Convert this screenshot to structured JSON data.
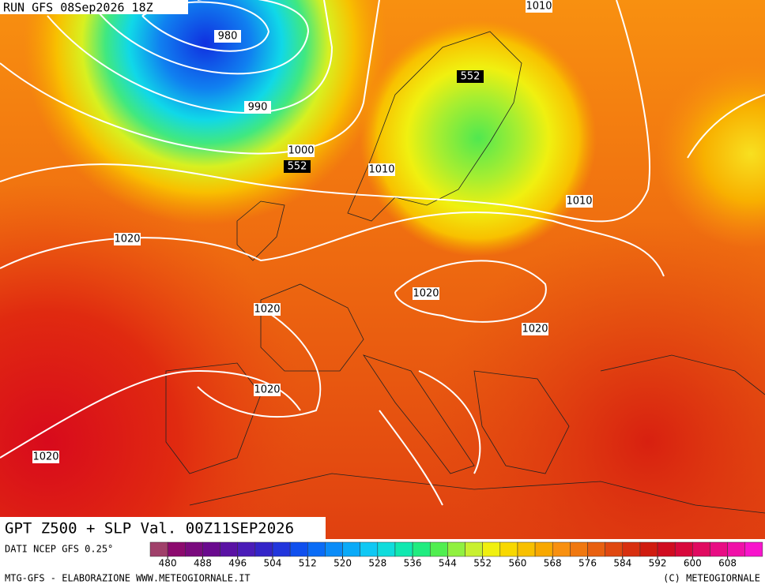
{
  "header": "RUN GFS 08Sep2026 18Z",
  "title": "GPT Z500 + SLP Val. 00Z11SEP2026",
  "contour_labels": [
    "980",
    "990",
    "1000",
    "552",
    "552",
    "1010",
    "1010",
    "1010",
    "1020",
    "1020",
    "1020",
    "1020",
    "1020",
    "1020"
  ],
  "colorbar": {
    "caption": "DATI NCEP GFS 0.25°",
    "ticks": [
      480,
      488,
      496,
      504,
      512,
      520,
      528,
      536,
      544,
      552,
      560,
      568,
      576,
      584,
      592,
      600,
      608
    ],
    "colors": [
      "#a0406a",
      "#8c0a6e",
      "#7a0a7e",
      "#6a0a8e",
      "#5a12a4",
      "#4a1cb8",
      "#3424c8",
      "#2236dc",
      "#1050ee",
      "#0a6cf6",
      "#0a8cf8",
      "#0aaaf8",
      "#10c8f4",
      "#10dcdc",
      "#10e8b0",
      "#20ec80",
      "#50ee50",
      "#90f040",
      "#c8f030",
      "#f0f010",
      "#f8d800",
      "#f8c000",
      "#f8a800",
      "#f89010",
      "#f07810",
      "#e86010",
      "#e04810",
      "#d83010",
      "#d01c10",
      "#d00c20",
      "#d8083c",
      "#e00a60",
      "#e80c84",
      "#f010a8",
      "#f814cc"
    ]
  },
  "footer": {
    "left": "MTG-GFS - ELABORAZIONE WWW.METEOGIORNALE.IT",
    "right": "(C) METEOGIORNALE"
  }
}
